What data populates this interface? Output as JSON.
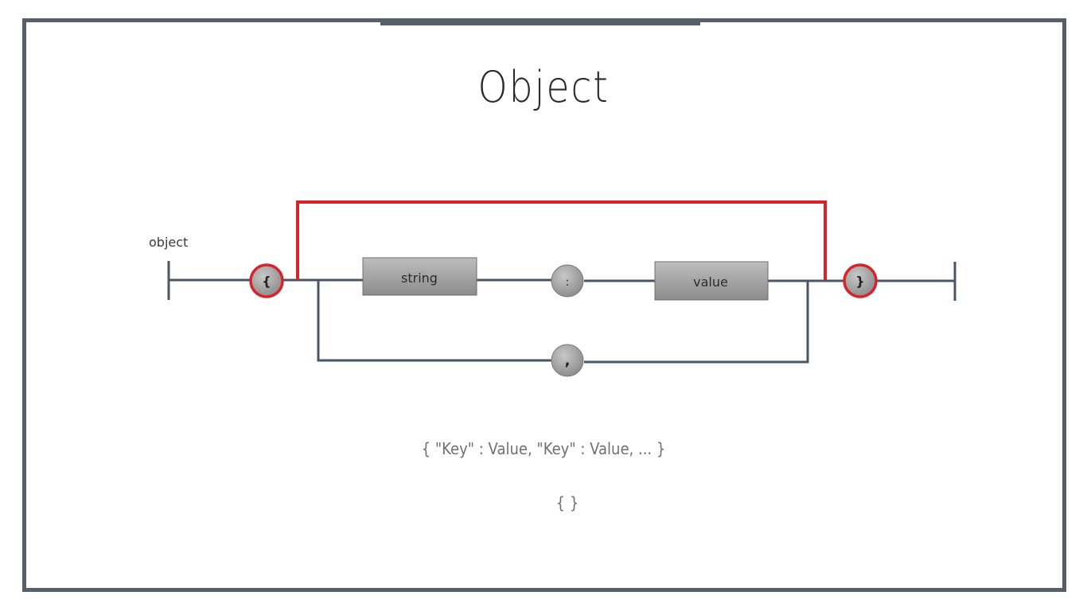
{
  "slide": {
    "title": "Object",
    "examples": [
      "{ \"Key\" : Value, \"Key\" : Value, ... }",
      "{ }"
    ]
  },
  "diagram": {
    "rule_name": "object",
    "open_brace": "{",
    "close_brace": "}",
    "string_label": "string",
    "colon_label": ":",
    "value_label": "value",
    "comma_label": ","
  },
  "colors": {
    "frame": "#595e6b",
    "track": "#4a5566",
    "highlight": "#d8232a",
    "node_fill": "#9a9a9a"
  }
}
